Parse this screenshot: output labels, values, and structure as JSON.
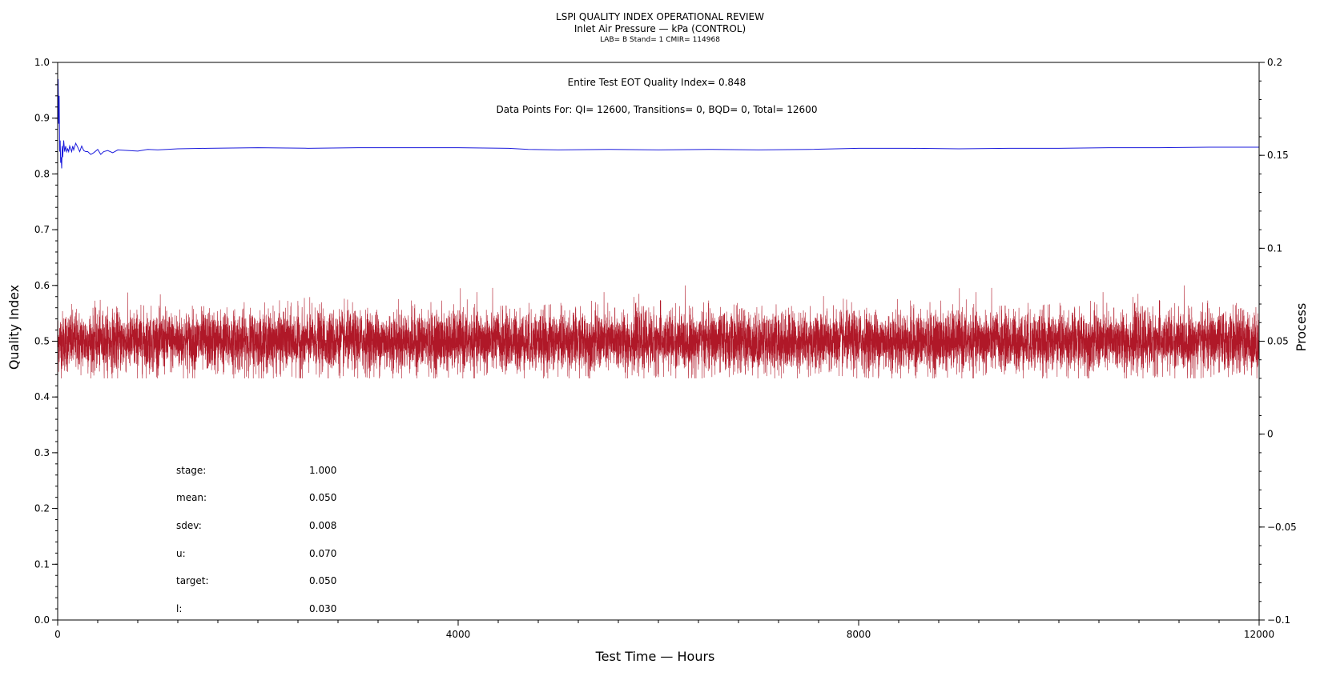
{
  "chart_data": {
    "type": "line",
    "title": "LSPI QUALITY INDEX OPERATIONAL REVIEW",
    "subtitle": "Inlet Air Pressure — kPa (CONTROL)",
    "subtitle2": "LAB= B Stand= 1 CMIR= 114968",
    "xlabel": "Test Time — Hours",
    "ylabel": "Quality Index",
    "y2label": "Process",
    "xlim": [
      0,
      12000
    ],
    "ylim": [
      0,
      1.0
    ],
    "y2lim": [
      -0.1,
      0.2
    ],
    "xticks": [
      0,
      4000,
      8000,
      12000
    ],
    "yticks": [
      0.0,
      0.1,
      0.2,
      0.3,
      0.4,
      0.5,
      0.6,
      0.7,
      0.8,
      0.9,
      1.0
    ],
    "y2ticks": [
      -0.1,
      -0.05,
      0,
      0.05,
      0.1,
      0.15,
      0.2
    ],
    "ytick_labels": [
      "0.0",
      "0.1",
      "0.2",
      "0.3",
      "0.4",
      "0.5",
      "0.6",
      "0.7",
      "0.8",
      "0.9",
      "1.0"
    ],
    "y2tick_labels": [
      "−0.1",
      "−0.05",
      "0",
      "0.05",
      "0.1",
      "0.15",
      "0.2"
    ],
    "xtick_labels": [
      "0",
      "4000",
      "8000",
      "12000"
    ],
    "annotations": [
      "Entire Test EOT Quality Index=   0.848",
      "Data Points For: QI= 12600, Transitions=      0, BQD=      0, Total= 12600"
    ],
    "stats": [
      {
        "label": "stage:",
        "value": "1.000"
      },
      {
        "label": "mean:",
        "value": "0.050"
      },
      {
        "label": "sdev:",
        "value": "0.008"
      },
      {
        "label": "u:",
        "value": "0.070"
      },
      {
        "label": "target:",
        "value": "0.050"
      },
      {
        "label": "l:",
        "value": "0.030"
      }
    ],
    "series": [
      {
        "axis": "left",
        "color": "#1a1adc",
        "x": [
          0,
          5,
          10,
          15,
          20,
          25,
          30,
          35,
          40,
          45,
          50,
          60,
          70,
          80,
          90,
          100,
          110,
          120,
          130,
          140,
          150,
          160,
          180,
          200,
          220,
          240,
          260,
          280,
          300,
          330,
          360,
          400,
          430,
          460,
          500,
          550,
          600,
          700,
          800,
          900,
          1000,
          1200,
          1500,
          2000,
          2500,
          3000,
          3500,
          4000,
          4500,
          4700,
          5000,
          5500,
          6000,
          6500,
          7000,
          7500,
          8000,
          8500,
          9000,
          9500,
          10000,
          10500,
          11000,
          11500,
          12000
        ],
        "y": [
          0.88,
          0.97,
          0.89,
          0.94,
          0.84,
          0.86,
          0.82,
          0.83,
          0.81,
          0.85,
          0.83,
          0.86,
          0.84,
          0.85,
          0.84,
          0.845,
          0.84,
          0.85,
          0.845,
          0.84,
          0.85,
          0.843,
          0.855,
          0.848,
          0.84,
          0.85,
          0.842,
          0.84,
          0.84,
          0.835,
          0.838,
          0.844,
          0.835,
          0.84,
          0.842,
          0.838,
          0.843,
          0.842,
          0.841,
          0.844,
          0.843,
          0.845,
          0.846,
          0.847,
          0.846,
          0.847,
          0.847,
          0.847,
          0.846,
          0.844,
          0.843,
          0.844,
          0.843,
          0.844,
          0.843,
          0.844,
          0.846,
          0.846,
          0.845,
          0.846,
          0.846,
          0.847,
          0.847,
          0.848,
          0.848
        ]
      },
      {
        "axis": "right",
        "color": "#b01828",
        "points": 12600,
        "mean": 0.05,
        "sdev": 0.008,
        "min": 0.03,
        "max": 0.08
      }
    ]
  }
}
